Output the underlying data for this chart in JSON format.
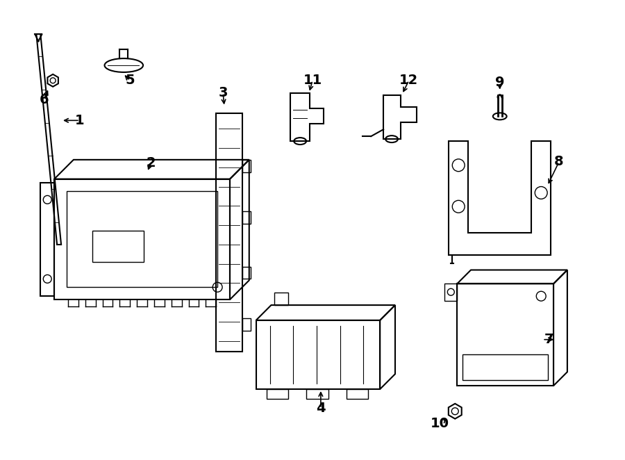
{
  "background_color": "#ffffff",
  "line_color": "#000000",
  "lw_main": 1.5,
  "lw_thin": 1.0,
  "font_size": 14
}
